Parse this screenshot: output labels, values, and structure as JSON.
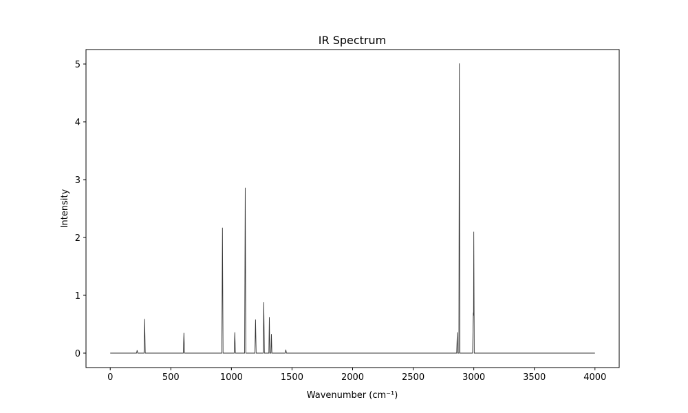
{
  "chart_data": {
    "type": "line",
    "title": "IR Spectrum",
    "x_label": "Wavenumber (cm⁻¹)",
    "y_label": "Intensity",
    "x": [
      0,
      217,
      222,
      227,
      279,
      284,
      289,
      603,
      608,
      613,
      921,
      926,
      931,
      1023,
      1028,
      1033,
      1109,
      1114,
      1119,
      1194,
      1199,
      1204,
      1262,
      1267,
      1272,
      1309,
      1313,
      1317,
      1326,
      1330,
      1334,
      1444,
      1449,
      1454,
      2859,
      2864,
      2868,
      2877,
      2881,
      2885,
      2990,
      2996,
      2998,
      3000,
      3004,
      4000
    ],
    "series": [
      {
        "name": "IR",
        "color": "#333333",
        "values": [
          0,
          0,
          0.05,
          0,
          0,
          0.59,
          0,
          0,
          0.35,
          0,
          0,
          2.17,
          0,
          0,
          0.36,
          0,
          0,
          2.86,
          0,
          0,
          0.58,
          0,
          0,
          0.88,
          0,
          0,
          0.62,
          0,
          0,
          0.33,
          0,
          0,
          0.06,
          0,
          0,
          0.36,
          0,
          0,
          5.01,
          0,
          0,
          0.7,
          0.65,
          2.1,
          0,
          0
        ]
      }
    ],
    "xlim": [
      -200,
      4200
    ],
    "ylim": [
      -0.25,
      5.25
    ],
    "xticks": [
      0,
      500,
      1000,
      1500,
      2000,
      2500,
      3000,
      3500,
      4000
    ],
    "yticks": [
      0,
      1,
      2,
      3,
      4,
      5
    ]
  }
}
